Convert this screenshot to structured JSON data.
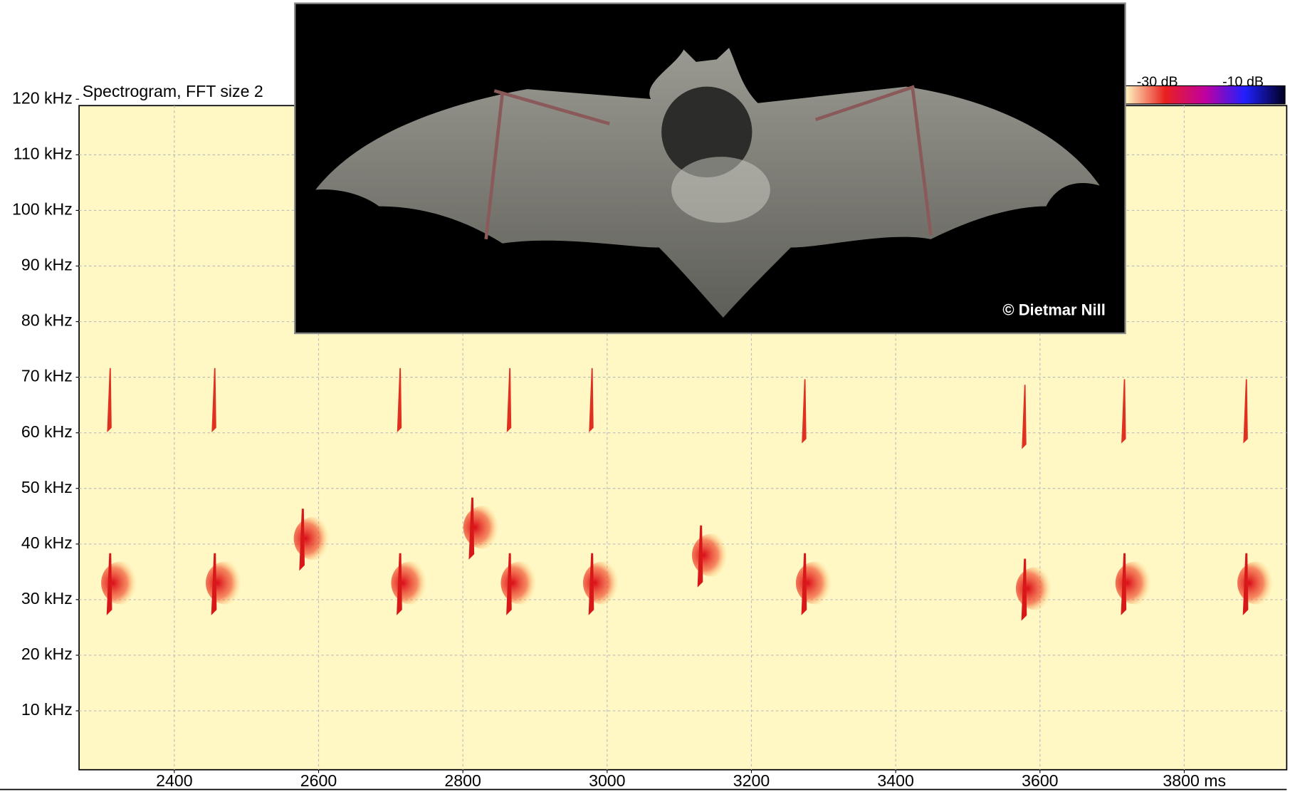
{
  "chart_data": {
    "type": "spectrogram",
    "title": "Spectrogram, FFT size 2",
    "x": [
      2310,
      2455,
      2577,
      2712,
      2812,
      2864,
      2978,
      3129,
      3273,
      3578,
      3716,
      3885
    ],
    "series": [
      {
        "color": "#d81818",
        "values": [
          33,
          33,
          41,
          33,
          43,
          33,
          33,
          38,
          33,
          32,
          33,
          33
        ]
      },
      {
        "color": "#e03020",
        "values": [
          66,
          66,
          null,
          66,
          null,
          66,
          66,
          null,
          64,
          63,
          64,
          64
        ]
      }
    ],
    "xlim": [
      2268,
      3942
    ],
    "ylim": [
      0,
      119
    ],
    "xticks": [
      2400,
      2600,
      2800,
      3000,
      3200,
      3400,
      3600,
      {
        "value": 3800,
        "label": "3800 ms"
      }
    ],
    "yticks": [
      {
        "value": 10,
        "label": "10 kHz"
      },
      {
        "value": 20,
        "label": "20 kHz"
      },
      {
        "value": 30,
        "label": "30 kHz"
      },
      {
        "value": 40,
        "label": "40 kHz"
      },
      {
        "value": 50,
        "label": "50 kHz"
      },
      {
        "value": 60,
        "label": "60 kHz"
      },
      {
        "value": 70,
        "label": "70 kHz"
      },
      {
        "value": 80,
        "label": "80 kHz"
      },
      {
        "value": 90,
        "label": "90 kHz"
      },
      {
        "value": 100,
        "label": "100 kHz"
      },
      {
        "value": 110,
        "label": "110 kHz"
      },
      {
        "value": 120,
        "label": "120 kHz"
      }
    ],
    "grid": true,
    "colorbar": {
      "labels": [
        "-30 dB",
        "-10 dB"
      ],
      "colors": [
        "#fff6c0",
        "#e82020",
        "#c000a0",
        "#2020ff",
        "#000020"
      ]
    },
    "photo_credit": "© Dietmar Nill"
  }
}
